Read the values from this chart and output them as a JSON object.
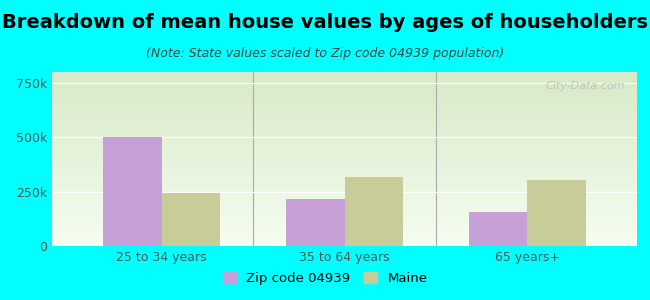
{
  "title": "Breakdown of mean house values by ages of householders",
  "subtitle": "(Note: State values scaled to Zip code 04939 population)",
  "categories": [
    "25 to 34 years",
    "35 to 64 years",
    "65 years+"
  ],
  "zip_values": [
    500000,
    215000,
    155000
  ],
  "maine_values": [
    245000,
    315000,
    305000
  ],
  "ylim": [
    0,
    800000
  ],
  "yticks": [
    0,
    250000,
    500000,
    750000
  ],
  "ytick_labels": [
    "0",
    "250k",
    "500k",
    "750k"
  ],
  "zip_color": "#c8a0d8",
  "maine_color": "#c8cc99",
  "background_color": "#00ffff",
  "plot_bg_top": "#f5fdf0",
  "plot_bg_bottom": "#d8eac8",
  "legend_zip": "Zip code 04939",
  "legend_maine": "Maine",
  "bar_width": 0.32,
  "title_fontsize": 14,
  "subtitle_fontsize": 9,
  "tick_fontsize": 9,
  "legend_fontsize": 9.5
}
